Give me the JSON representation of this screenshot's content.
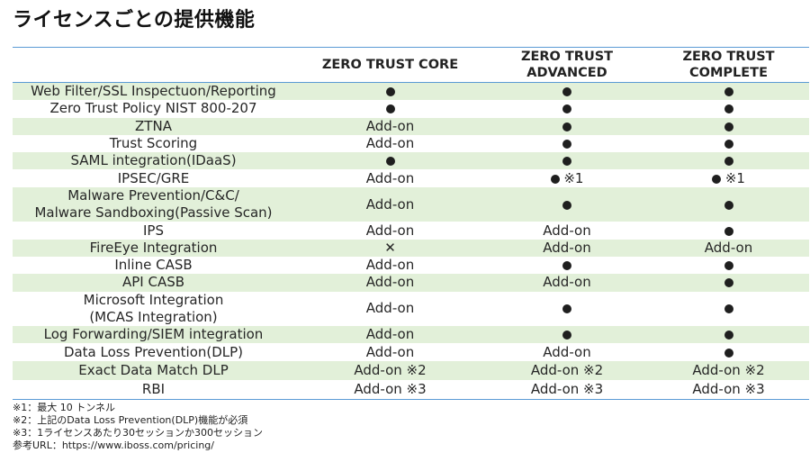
{
  "title": "ライセンスごとの提供機能",
  "table": {
    "headers": [
      "",
      "ZERO TRUST CORE",
      "ZERO TRUST\nADVANCED",
      "ZERO TRUST\nCOMPLETE"
    ],
    "rows": [
      {
        "feature": "Web Filter/SSL Inspectuon/Reporting",
        "core": "●",
        "advanced": "●",
        "complete": "●",
        "green": true
      },
      {
        "feature": "Zero Trust Policy NIST 800-207",
        "core": "●",
        "advanced": "●",
        "complete": "●",
        "green": false
      },
      {
        "feature": "ZTNA",
        "core": "Add-on",
        "advanced": "●",
        "complete": "●",
        "green": true
      },
      {
        "feature": "Trust Scoring",
        "core": "Add-on",
        "advanced": "●",
        "complete": "●",
        "green": false
      },
      {
        "feature": "SAML integration(IDaaS)",
        "core": "●",
        "advanced": "●",
        "complete": "●",
        "green": true
      },
      {
        "feature": "IPSEC/GRE",
        "core": "Add-on",
        "advanced": "● ※1",
        "complete": "● ※1",
        "green": false
      },
      {
        "feature": "Malware Prevention/C&C/\nMalware Sandboxing(Passive Scan)",
        "core": "Add-on",
        "advanced": "●",
        "complete": "●",
        "green": true,
        "tall": true
      },
      {
        "feature": "IPS",
        "core": "Add-on",
        "advanced": "Add-on",
        "complete": "●",
        "green": false
      },
      {
        "feature": "FireEye Integration",
        "core": "✕",
        "advanced": "Add-on",
        "complete": "Add-on",
        "green": true
      },
      {
        "feature": "Inline CASB",
        "core": "Add-on",
        "advanced": "●",
        "complete": "●",
        "green": false
      },
      {
        "feature": "API CASB",
        "core": "Add-on",
        "advanced": "Add-on",
        "complete": "●",
        "green": true
      },
      {
        "feature": "Microsoft Integration\n(MCAS Integration)",
        "core": "Add-on",
        "advanced": "●",
        "complete": "●",
        "green": false,
        "tall": true
      },
      {
        "feature": "Log Forwarding/SIEM integration",
        "core": "Add-on",
        "advanced": "●",
        "complete": "●",
        "green": true
      },
      {
        "feature": "Data Loss Prevention(DLP)",
        "core": "Add-on",
        "advanced": "Add-on",
        "complete": "●",
        "green": false
      },
      {
        "feature": "Exact Data Match DLP",
        "core": "Add-on ※2",
        "advanced": "Add-on ※2",
        "complete": "Add-on ※2",
        "green": true
      },
      {
        "feature": "RBI",
        "core": "Add-on ※3",
        "advanced": "Add-on ※3",
        "complete": "Add-on ※3",
        "green": false
      }
    ]
  },
  "footnotes": [
    "※1：最大 10 トンネル",
    "※2：上記のData Loss Prevention(DLP)機能が必須",
    "※3：1ライセンスあたり30セッションか300セッション",
    "参考URL：https://www.iboss.com/pricing/"
  ]
}
